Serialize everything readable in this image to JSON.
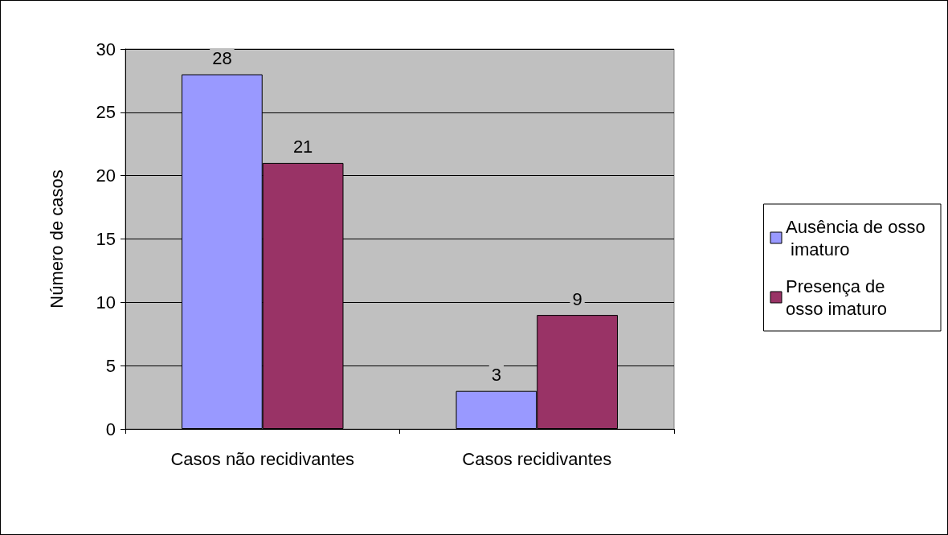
{
  "chart_data": {
    "type": "bar",
    "categories": [
      "Casos não recidivantes",
      "Casos recidivantes"
    ],
    "ylabel": "Número de casos",
    "series": [
      {
        "name": "Ausência de osso imaturo",
        "color": "#9999ff",
        "values": [
          28,
          3
        ]
      },
      {
        "name": "Presença de osso imaturo",
        "color": "#993366",
        "values": [
          21,
          9
        ]
      }
    ],
    "ylim": [
      0,
      30
    ],
    "yticks": [
      0,
      5,
      10,
      15,
      20,
      25,
      30
    ],
    "grid": "y",
    "legend": "right",
    "data_labels": true
  }
}
